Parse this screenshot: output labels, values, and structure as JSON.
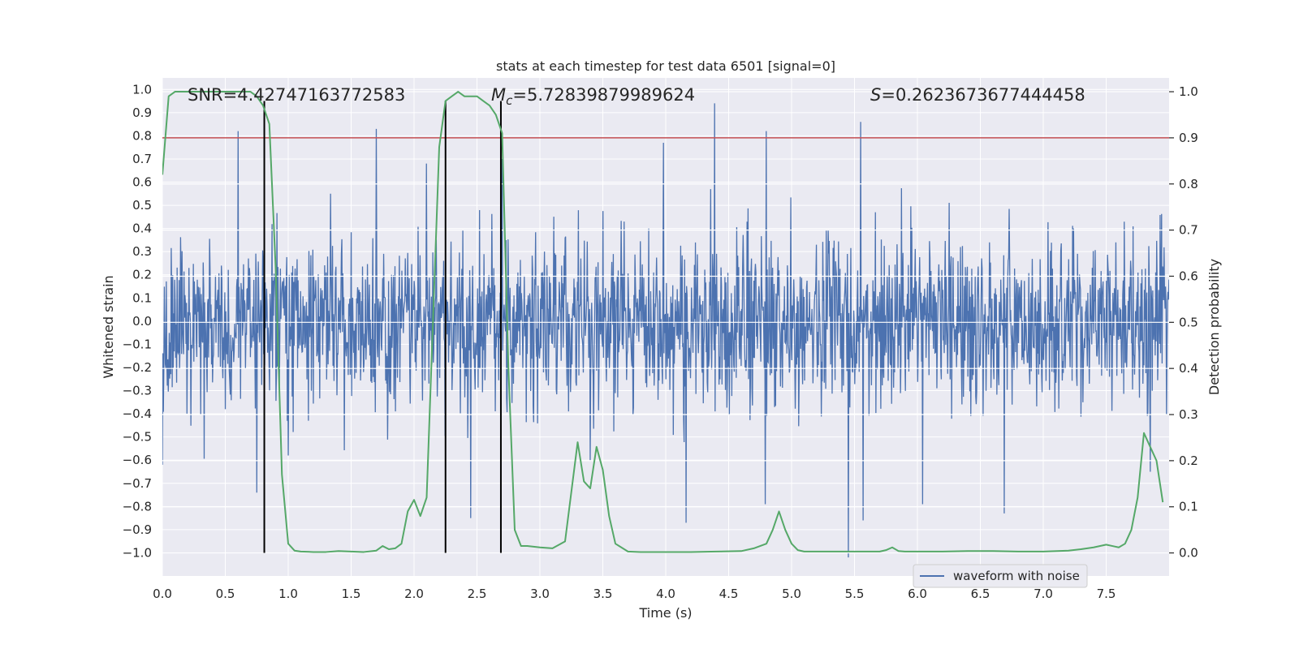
{
  "chart_data": {
    "type": "line",
    "title": "stats at each timestep for test data 6501 [signal=0]",
    "xlabel": "Time (s)",
    "ylabel_left": "Whitened strain",
    "ylabel_right": "Detection probability",
    "xlim": [
      0.0,
      8.0
    ],
    "ylim_left": [
      -1.1,
      1.05
    ],
    "ylim_right": [
      -0.05,
      1.03
    ],
    "x_ticks": [
      0.0,
      0.5,
      1.0,
      1.5,
      2.0,
      2.5,
      3.0,
      3.5,
      4.0,
      4.5,
      5.0,
      5.5,
      6.0,
      6.5,
      7.0,
      7.5
    ],
    "x_tick_labels": [
      "0.0",
      "0.5",
      "1.0",
      "1.5",
      "2.0",
      "2.5",
      "3.0",
      "3.5",
      "4.0",
      "4.5",
      "5.0",
      "5.5",
      "6.0",
      "6.5",
      "7.0",
      "7.5"
    ],
    "y_left_ticks": [
      1.0,
      0.9,
      0.8,
      0.7,
      0.6,
      0.5,
      0.4,
      0.3,
      0.2,
      0.1,
      0.0,
      -0.1,
      -0.2,
      -0.3,
      -0.4,
      -0.5,
      -0.6,
      -0.7,
      -0.8,
      -0.9,
      -1.0
    ],
    "y_left_tick_labels": [
      "1.0",
      "0.9",
      "0.8",
      "0.7",
      "0.6",
      "0.5",
      "0.4",
      "0.3",
      "0.2",
      "0.1",
      "0.0",
      "−0.1",
      "−0.2",
      "−0.3",
      "−0.4",
      "−0.5",
      "−0.6",
      "−0.7",
      "−0.8",
      "−0.9",
      "−1.0"
    ],
    "y_right_ticks": [
      1.0,
      0.9,
      0.8,
      0.7,
      0.6,
      0.5,
      0.4,
      0.3,
      0.2,
      0.1,
      0.0
    ],
    "y_right_tick_labels": [
      "1.0",
      "0.9",
      "0.8",
      "0.7",
      "0.6",
      "0.5",
      "0.4",
      "0.3",
      "0.2",
      "0.1",
      "0.0"
    ],
    "grid": true,
    "annotations": {
      "snr": "SNR=4.42747163772583",
      "mc_symbol": "M",
      "mc_sub": "c",
      "mc_value": "=5.72839879989624",
      "s_symbol": "S",
      "s_value": "=0.2623673677444458"
    },
    "legend": {
      "position": "lower-right",
      "entries": [
        "waveform with noise"
      ]
    },
    "threshold": {
      "value": 0.9,
      "axis": "right",
      "color": "#c44e52"
    },
    "vertical_lines": {
      "x": [
        0.81,
        2.25,
        2.69
      ],
      "y_range": [
        -1.0,
        0.95
      ],
      "color": "#000000"
    },
    "waveform": {
      "name": "waveform with noise",
      "color": "#4c72b0",
      "duration": 7.999,
      "samples": 2048,
      "seed": 6501,
      "sigma": 0.175,
      "spikes": [
        {
          "x": 0.0,
          "y": -0.62
        },
        {
          "x": 0.6,
          "y": 0.82
        },
        {
          "x": 0.75,
          "y": -0.74
        },
        {
          "x": 1.0,
          "y": -0.58
        },
        {
          "x": 1.7,
          "y": 0.83
        },
        {
          "x": 2.1,
          "y": 0.68
        },
        {
          "x": 2.45,
          "y": -0.85
        },
        {
          "x": 2.7,
          "y": 0.7
        },
        {
          "x": 3.4,
          "y": -0.6
        },
        {
          "x": 3.98,
          "y": 0.77
        },
        {
          "x": 4.16,
          "y": -0.87
        },
        {
          "x": 4.39,
          "y": 0.94
        },
        {
          "x": 4.79,
          "y": -0.79
        },
        {
          "x": 4.8,
          "y": 0.82
        },
        {
          "x": 5.45,
          "y": -1.02
        },
        {
          "x": 5.55,
          "y": 0.86
        },
        {
          "x": 5.57,
          "y": -0.86
        },
        {
          "x": 6.04,
          "y": -0.79
        },
        {
          "x": 6.69,
          "y": -0.83
        },
        {
          "x": 7.85,
          "y": -0.65
        }
      ]
    },
    "detection_probability": {
      "name": "detection probability",
      "color": "#55a868",
      "axis": "right",
      "x": [
        0.0,
        0.05,
        0.1,
        0.2,
        0.3,
        0.4,
        0.5,
        0.6,
        0.7,
        0.75,
        0.8,
        0.85,
        0.9,
        0.95,
        1.0,
        1.05,
        1.1,
        1.2,
        1.3,
        1.4,
        1.5,
        1.6,
        1.7,
        1.75,
        1.8,
        1.85,
        1.9,
        1.95,
        2.0,
        2.05,
        2.1,
        2.15,
        2.2,
        2.25,
        2.3,
        2.35,
        2.4,
        2.45,
        2.5,
        2.55,
        2.6,
        2.65,
        2.7,
        2.75,
        2.8,
        2.85,
        2.9,
        3.0,
        3.1,
        3.2,
        3.3,
        3.35,
        3.4,
        3.45,
        3.5,
        3.55,
        3.6,
        3.7,
        3.8,
        3.9,
        4.0,
        4.2,
        4.4,
        4.6,
        4.7,
        4.8,
        4.85,
        4.9,
        4.95,
        5.0,
        5.05,
        5.1,
        5.2,
        5.4,
        5.6,
        5.7,
        5.75,
        5.8,
        5.85,
        5.9,
        6.0,
        6.2,
        6.4,
        6.6,
        6.8,
        7.0,
        7.2,
        7.3,
        7.4,
        7.5,
        7.55,
        7.6,
        7.65,
        7.7,
        7.75,
        7.8,
        7.85,
        7.9,
        7.95
      ],
      "y": [
        0.82,
        0.99,
        1.0,
        1.0,
        1.0,
        1.0,
        1.0,
        1.0,
        1.0,
        0.99,
        0.97,
        0.93,
        0.62,
        0.17,
        0.02,
        0.005,
        0.003,
        0.002,
        0.002,
        0.004,
        0.003,
        0.002,
        0.005,
        0.015,
        0.008,
        0.01,
        0.02,
        0.09,
        0.115,
        0.08,
        0.12,
        0.5,
        0.88,
        0.98,
        0.99,
        1.0,
        0.99,
        0.99,
        0.99,
        0.98,
        0.97,
        0.95,
        0.91,
        0.4,
        0.05,
        0.015,
        0.015,
        0.012,
        0.01,
        0.025,
        0.24,
        0.155,
        0.14,
        0.23,
        0.18,
        0.08,
        0.02,
        0.003,
        0.002,
        0.002,
        0.002,
        0.002,
        0.003,
        0.004,
        0.01,
        0.02,
        0.05,
        0.09,
        0.05,
        0.02,
        0.006,
        0.003,
        0.003,
        0.003,
        0.003,
        0.003,
        0.006,
        0.012,
        0.004,
        0.003,
        0.003,
        0.003,
        0.004,
        0.004,
        0.003,
        0.003,
        0.005,
        0.008,
        0.012,
        0.018,
        0.015,
        0.012,
        0.02,
        0.05,
        0.12,
        0.26,
        0.23,
        0.2,
        0.11
      ]
    }
  }
}
